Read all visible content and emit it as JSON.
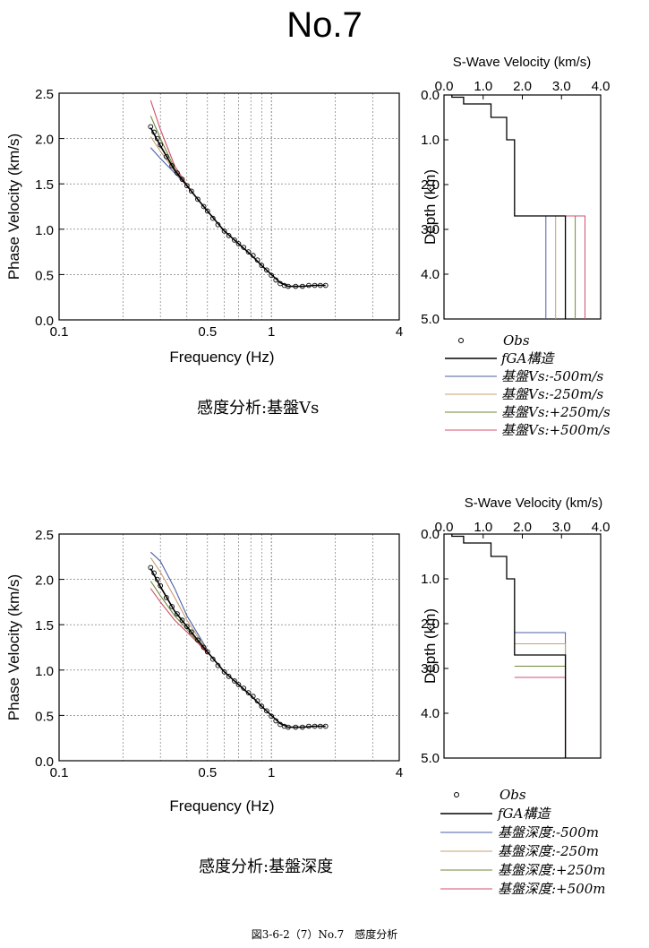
{
  "page_title": "No.7",
  "caption": "図3-6-2（7）No.7　感度分析",
  "colors": {
    "fga": "#000000",
    "minus500": "#4b5fa8",
    "minus250": "#c8a070",
    "plus250": "#6e8a3a",
    "plus500": "#d0506a",
    "obs": "#000000",
    "grid": "#666666"
  },
  "chart_data": [
    {
      "type": "line",
      "panel": "top-left",
      "subtitle": "感度分析:基盤Vs",
      "xlabel": "Frequency (Hz)",
      "ylabel": "Phase Velocity (km/s)",
      "xscale": "log",
      "xlim": [
        0.1,
        4
      ],
      "ylim": [
        0,
        2.5
      ],
      "x_ticks": [
        "0.1",
        "0.5",
        "1",
        "4"
      ],
      "y_ticks": [
        "0.0",
        "0.5",
        "1.0",
        "1.5",
        "2.0",
        "2.5"
      ],
      "grid": true,
      "obs": {
        "x": [
          0.27,
          0.28,
          0.29,
          0.3,
          0.32,
          0.34,
          0.36,
          0.38,
          0.4,
          0.42,
          0.45,
          0.48,
          0.5,
          0.53,
          0.56,
          0.6,
          0.63,
          0.67,
          0.7,
          0.74,
          0.78,
          0.82,
          0.86,
          0.9,
          0.95,
          1.0,
          1.05,
          1.1,
          1.15,
          1.2,
          1.3,
          1.4,
          1.5,
          1.6,
          1.7,
          1.8
        ],
        "y": [
          2.13,
          2.07,
          2.0,
          1.93,
          1.8,
          1.7,
          1.62,
          1.55,
          1.48,
          1.42,
          1.33,
          1.25,
          1.2,
          1.12,
          1.05,
          0.98,
          0.93,
          0.88,
          0.84,
          0.8,
          0.75,
          0.71,
          0.66,
          0.6,
          0.55,
          0.49,
          0.44,
          0.4,
          0.38,
          0.37,
          0.37,
          0.37,
          0.38,
          0.38,
          0.38,
          0.38
        ]
      },
      "series": [
        {
          "name": "fGA構造",
          "key": "fga",
          "x": [
            0.27,
            0.3,
            0.35,
            0.4,
            0.45,
            0.5,
            0.6,
            0.7,
            0.8,
            0.9,
            1.0,
            1.1,
            1.2,
            1.4,
            1.6,
            1.8
          ],
          "y": [
            2.12,
            1.92,
            1.65,
            1.48,
            1.33,
            1.2,
            0.98,
            0.84,
            0.72,
            0.6,
            0.5,
            0.41,
            0.37,
            0.37,
            0.38,
            0.38
          ]
        },
        {
          "name": "基盤Vs:-500m/s",
          "key": "minus500",
          "x": [
            0.27,
            0.3,
            0.35,
            0.4,
            0.45,
            0.5
          ],
          "y": [
            1.9,
            1.78,
            1.62,
            1.48,
            1.33,
            1.2
          ]
        },
        {
          "name": "基盤Vs:-250m/s",
          "key": "minus250",
          "x": [
            0.27,
            0.3,
            0.35,
            0.4,
            0.45,
            0.5
          ],
          "y": [
            2.02,
            1.86,
            1.64,
            1.48,
            1.33,
            1.2
          ]
        },
        {
          "name": "基盤Vs:+250m/s",
          "key": "plus250",
          "x": [
            0.27,
            0.3,
            0.35,
            0.4,
            0.45,
            0.5
          ],
          "y": [
            2.25,
            2.0,
            1.67,
            1.48,
            1.33,
            1.2
          ]
        },
        {
          "name": "基盤Vs:+500m/s",
          "key": "plus500",
          "x": [
            0.27,
            0.3,
            0.35,
            0.4,
            0.45,
            0.5
          ],
          "y": [
            2.42,
            2.1,
            1.7,
            1.49,
            1.33,
            1.2
          ]
        }
      ]
    },
    {
      "type": "line",
      "panel": "top-right",
      "title": "S-Wave Velocity (km/s)",
      "ylabel": "Depth (km)",
      "xlim": [
        0,
        4
      ],
      "ylim": [
        0,
        5
      ],
      "x_ticks": [
        "0.0",
        "1.0",
        "2.0",
        "3.0",
        "4.0"
      ],
      "y_ticks": [
        "0.0",
        "1.0",
        "2.0",
        "3.0",
        "4.0",
        "5.0"
      ],
      "grid": false,
      "series": [
        {
          "name": "fGA構造",
          "key": "fga",
          "vs": [
            0.2,
            0.5,
            1.2,
            1.6,
            1.8
          ],
          "depth": [
            0,
            0.05,
            0.2,
            0.5,
            1.0,
            2.7
          ]
        },
        {
          "name": "基盤Vs:-500m/s",
          "key": "minus500",
          "vs_half": 2.6,
          "basement_depth": 2.7
        },
        {
          "name": "基盤Vs:-250m/s",
          "key": "minus250",
          "vs_half": 2.85,
          "basement_depth": 2.7
        },
        {
          "name": "基盤Vs:+250m/s",
          "key": "plus250",
          "vs_half": 3.35,
          "basement_depth": 2.7
        },
        {
          "name": "基盤Vs:+500m/s",
          "key": "plus500",
          "vs_half": 3.6,
          "basement_depth": 2.7
        }
      ],
      "fga_vs_half": 3.1
    },
    {
      "type": "line",
      "panel": "bottom-left",
      "subtitle": "感度分析:基盤深度",
      "xlabel": "Frequency (Hz)",
      "ylabel": "Phase Velocity (km/s)",
      "xscale": "log",
      "xlim": [
        0.1,
        4
      ],
      "ylim": [
        0,
        2.5
      ],
      "x_ticks": [
        "0.1",
        "0.5",
        "1",
        "4"
      ],
      "y_ticks": [
        "0.0",
        "0.5",
        "1.0",
        "1.5",
        "2.0",
        "2.5"
      ],
      "grid": true,
      "obs": {
        "x": [
          0.27,
          0.28,
          0.29,
          0.3,
          0.32,
          0.34,
          0.36,
          0.38,
          0.4,
          0.42,
          0.45,
          0.48,
          0.5,
          0.53,
          0.56,
          0.6,
          0.63,
          0.67,
          0.7,
          0.74,
          0.78,
          0.82,
          0.86,
          0.9,
          0.95,
          1.0,
          1.05,
          1.1,
          1.15,
          1.2,
          1.3,
          1.4,
          1.5,
          1.6,
          1.7,
          1.8
        ],
        "y": [
          2.13,
          2.07,
          2.0,
          1.93,
          1.8,
          1.7,
          1.62,
          1.55,
          1.48,
          1.42,
          1.33,
          1.25,
          1.2,
          1.12,
          1.05,
          0.98,
          0.93,
          0.88,
          0.84,
          0.8,
          0.75,
          0.71,
          0.66,
          0.6,
          0.55,
          0.49,
          0.44,
          0.4,
          0.38,
          0.37,
          0.37,
          0.37,
          0.38,
          0.38,
          0.38,
          0.38
        ]
      },
      "series": [
        {
          "name": "fGA構造",
          "key": "fga",
          "x": [
            0.27,
            0.3,
            0.35,
            0.4,
            0.45,
            0.5,
            0.6,
            0.7,
            0.8,
            0.9,
            1.0,
            1.1,
            1.2,
            1.4,
            1.6,
            1.8
          ],
          "y": [
            2.12,
            1.92,
            1.65,
            1.48,
            1.33,
            1.2,
            0.98,
            0.84,
            0.72,
            0.6,
            0.5,
            0.41,
            0.37,
            0.37,
            0.38,
            0.38
          ]
        },
        {
          "name": "基盤深度:-500m",
          "key": "minus500",
          "x": [
            0.27,
            0.3,
            0.35,
            0.4,
            0.45,
            0.5
          ],
          "y": [
            2.3,
            2.2,
            1.9,
            1.6,
            1.4,
            1.22
          ]
        },
        {
          "name": "基盤深度:-250m",
          "key": "minus250",
          "x": [
            0.27,
            0.3,
            0.35,
            0.4,
            0.45,
            0.5
          ],
          "y": [
            2.24,
            2.08,
            1.8,
            1.55,
            1.37,
            1.21
          ]
        },
        {
          "name": "基盤深度:+250m",
          "key": "plus250",
          "x": [
            0.27,
            0.3,
            0.35,
            0.4,
            0.45,
            0.5
          ],
          "y": [
            1.98,
            1.82,
            1.6,
            1.45,
            1.31,
            1.19
          ]
        },
        {
          "name": "基盤深度:+500m",
          "key": "plus500",
          "x": [
            0.27,
            0.3,
            0.35,
            0.4,
            0.45,
            0.5
          ],
          "y": [
            1.9,
            1.75,
            1.55,
            1.42,
            1.3,
            1.18
          ]
        }
      ]
    },
    {
      "type": "line",
      "panel": "bottom-right",
      "title": "S-Wave Velocity (km/s)",
      "ylabel": "Depth (km)",
      "xlim": [
        0,
        4
      ],
      "ylim": [
        0,
        5
      ],
      "x_ticks": [
        "0.0",
        "1.0",
        "2.0",
        "3.0",
        "4.0"
      ],
      "y_ticks": [
        "0.0",
        "1.0",
        "2.0",
        "3.0",
        "4.0",
        "5.0"
      ],
      "grid": false,
      "series": [
        {
          "name": "fGA構造",
          "key": "fga",
          "vs": [
            0.2,
            0.5,
            1.2,
            1.6,
            1.8
          ],
          "depth": [
            0,
            0.05,
            0.2,
            0.5,
            1.0,
            2.7
          ]
        },
        {
          "name": "基盤深度:-500m",
          "key": "minus500",
          "basement_depth": 2.2
        },
        {
          "name": "基盤深度:-250m",
          "key": "minus250",
          "basement_depth": 2.45
        },
        {
          "name": "基盤深度:+250m",
          "key": "plus250",
          "basement_depth": 2.95
        },
        {
          "name": "基盤深度:+500m",
          "key": "plus500",
          "basement_depth": 3.2
        }
      ],
      "vs_half": 3.1
    }
  ],
  "legends": [
    {
      "entries": [
        "Obs",
        "fGA構造",
        "基盤Vs:-500m/s",
        "基盤Vs:-250m/s",
        "基盤Vs:+250m/s",
        "基盤Vs:+500m/s"
      ]
    },
    {
      "entries": [
        "Obs",
        "fGA構造",
        "基盤深度:-500m",
        "基盤深度:-250m",
        "基盤深度:+250m",
        "基盤深度:+500m"
      ]
    }
  ]
}
